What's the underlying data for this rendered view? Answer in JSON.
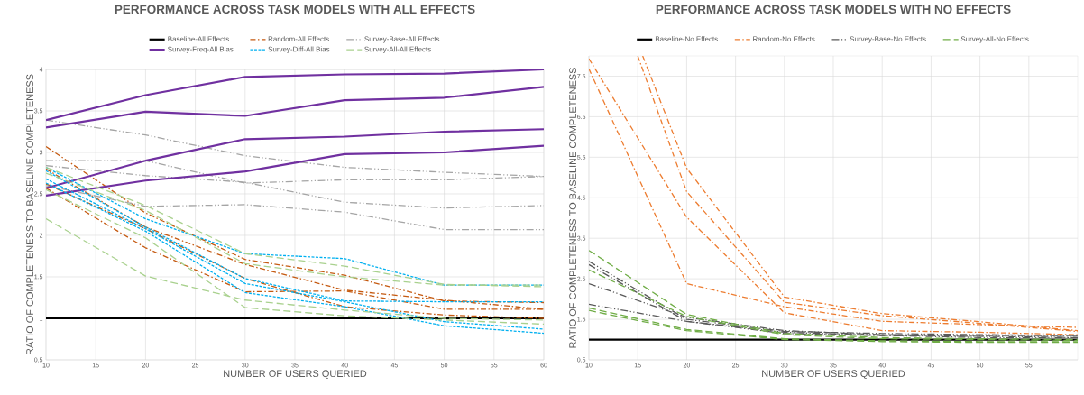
{
  "chart_data": [
    {
      "type": "line",
      "title": "PERFORMANCE ACROSS TASK MODELS WITH ALL EFFECTS",
      "xlabel": "NUMBER OF USERS QUERIED",
      "ylabel": "RATIO OF COMPLETENESS TO BASELINE COMPLETENESS",
      "x": [
        10,
        20,
        30,
        40,
        50,
        60
      ],
      "xlim": [
        10,
        60
      ],
      "xticks": [
        10,
        15,
        20,
        25,
        30,
        35,
        40,
        45,
        50,
        55,
        60
      ],
      "ylim": [
        0.5,
        4
      ],
      "yticks": [
        0.5,
        1,
        1.5,
        2,
        2.5,
        3,
        3.5,
        4
      ],
      "grid": true,
      "legend": "top",
      "series": [
        {
          "name": "Baseline-All Effects",
          "color": "#000000",
          "line_style": "solid",
          "values": [
            1,
            1,
            1,
            1,
            1,
            1
          ]
        },
        {
          "name": "Random-All Effects",
          "color": "#c55a11",
          "line_style": "dashdot",
          "values": [
            3.07,
            2.27,
            1.71,
            1.52,
            1.21,
            1.19
          ]
        },
        {
          "color": "#c55a11",
          "line_style": "dashdot",
          "values": [
            2.8,
            2.1,
            1.65,
            1.34,
            1.22,
            1.11
          ]
        },
        {
          "color": "#c55a11",
          "line_style": "dashdot",
          "values": [
            2.57,
            1.85,
            1.32,
            1.33,
            1.11,
            1.11
          ]
        },
        {
          "color": "#c55a11",
          "line_style": "dashdot",
          "values": [
            2.62,
            2.08,
            1.48,
            1.14,
            1.04,
            1.0
          ]
        },
        {
          "name": "Survey-Base-All Effects",
          "color": "#a5a5a5",
          "line_style": "dashdotdot",
          "values": [
            3.39,
            3.21,
            2.96,
            2.82,
            2.76,
            2.71
          ]
        },
        {
          "color": "#a5a5a5",
          "line_style": "dashdotdot",
          "values": [
            2.9,
            2.9,
            2.63,
            2.67,
            2.67,
            2.71
          ]
        },
        {
          "color": "#a5a5a5",
          "line_style": "dashdotdot",
          "values": [
            2.84,
            2.72,
            2.64,
            2.4,
            2.33,
            2.36
          ]
        },
        {
          "color": "#a5a5a5",
          "line_style": "dashdotdot",
          "values": [
            2.6,
            2.35,
            2.37,
            2.28,
            2.07,
            2.07
          ]
        },
        {
          "name": "Survey-Freq-All Bias",
          "color": "#7030a0",
          "line_style": "solid",
          "values": [
            3.39,
            3.69,
            3.91,
            3.94,
            3.95,
            4.0
          ]
        },
        {
          "color": "#7030a0",
          "line_style": "solid",
          "values": [
            3.3,
            3.49,
            3.44,
            3.63,
            3.66,
            3.79
          ]
        },
        {
          "color": "#7030a0",
          "line_style": "solid",
          "values": [
            2.57,
            2.9,
            3.16,
            3.19,
            3.25,
            3.28
          ]
        },
        {
          "color": "#7030a0",
          "line_style": "solid",
          "values": [
            2.48,
            2.66,
            2.77,
            2.98,
            3.0,
            3.08
          ]
        },
        {
          "name": "Survey-Diff-All Bias",
          "color": "#00b0f0",
          "line_style": "dashed",
          "values": [
            2.82,
            2.2,
            1.78,
            1.72,
            1.4,
            1.4
          ]
        },
        {
          "color": "#00b0f0",
          "line_style": "dashed",
          "values": [
            2.78,
            2.1,
            1.48,
            1.21,
            1.2,
            1.2
          ]
        },
        {
          "color": "#00b0f0",
          "line_style": "dashed",
          "values": [
            2.68,
            2.08,
            1.42,
            1.2,
            0.96,
            0.87
          ]
        },
        {
          "color": "#00b0f0",
          "line_style": "dashed",
          "values": [
            2.63,
            2.05,
            1.31,
            1.14,
            0.91,
            0.82
          ]
        },
        {
          "name": "Survey-All-All Effects",
          "color": "#a9d18e",
          "line_style": "longdash",
          "values": [
            2.82,
            2.36,
            1.78,
            1.63,
            1.41,
            1.38
          ]
        },
        {
          "color": "#a9d18e",
          "line_style": "longdash",
          "values": [
            2.75,
            2.3,
            1.66,
            1.5,
            1.4,
            1.4
          ]
        },
        {
          "color": "#a9d18e",
          "line_style": "longdash",
          "values": [
            2.55,
            1.97,
            1.13,
            1.03,
            0.98,
            0.93
          ]
        },
        {
          "color": "#a9d18e",
          "line_style": "longdash",
          "values": [
            2.2,
            1.51,
            1.22,
            1.1,
            1.0,
            0.98
          ]
        }
      ]
    },
    {
      "type": "line",
      "title": "PERFORMANCE ACROSS TASK MODELS WITH NO EFFECTS",
      "xlabel": "NUMBER OF USERS QUERIED",
      "ylabel": "RATIO OF COMPLETENESS TO BASELINE COMPLETENESS",
      "x": [
        10,
        20,
        30,
        40,
        50,
        60
      ],
      "xlim": [
        10,
        60
      ],
      "xticks": [
        10,
        15,
        20,
        25,
        30,
        35,
        40,
        45,
        50,
        55
      ],
      "ylim": [
        0.5,
        8
      ],
      "yticks": [
        0.5,
        1.5,
        2.5,
        3.5,
        4.5,
        5.5,
        6.5,
        7.5
      ],
      "grid": true,
      "legend": "top",
      "series": [
        {
          "name": "Baseline-No Effects",
          "color": "#000000",
          "line_style": "solid",
          "values": [
            1,
            1,
            1,
            1,
            1,
            1
          ]
        },
        {
          "name": "Random-No Effects",
          "color": "#ed7d31",
          "line_style": "dashdot",
          "x": [
            15.5,
            20,
            30,
            40,
            50,
            60
          ],
          "values": [
            8,
            5.23,
            2.05,
            1.64,
            1.44,
            1.22
          ]
        },
        {
          "color": "#ed7d31",
          "line_style": "dashdot",
          "x": [
            15,
            20,
            30,
            40,
            50,
            60
          ],
          "values": [
            8,
            4.65,
            1.92,
            1.59,
            1.4,
            1.2
          ]
        },
        {
          "color": "#ed7d31",
          "line_style": "dashdot",
          "values": [
            7.93,
            4.02,
            1.66,
            1.22,
            1.18,
            1.12
          ]
        },
        {
          "color": "#ed7d31",
          "line_style": "dashdot",
          "values": [
            7.68,
            2.38,
            1.81,
            1.45,
            1.37,
            1.3
          ]
        },
        {
          "name": "Survey-Base-No Effects",
          "color": "#595959",
          "line_style": "dashdotdot",
          "values": [
            2.93,
            1.5,
            1.2,
            1.15,
            1.12,
            1.1
          ]
        },
        {
          "color": "#595959",
          "line_style": "dashdotdot",
          "values": [
            2.85,
            1.45,
            1.15,
            1.1,
            1.08,
            1.05
          ]
        },
        {
          "color": "#595959",
          "line_style": "dashdotdot",
          "values": [
            2.38,
            1.55,
            1.22,
            1.12,
            1.1,
            1.1
          ]
        },
        {
          "color": "#595959",
          "line_style": "dashdotdot",
          "values": [
            1.87,
            1.45,
            1.18,
            1.1,
            1.05,
            1.05
          ]
        },
        {
          "name": "Survey-All-No Effects",
          "color": "#70ad47",
          "line_style": "longdash",
          "values": [
            3.2,
            1.62,
            1.15,
            1.05,
            1.02,
            1.0
          ]
        },
        {
          "color": "#70ad47",
          "line_style": "longdash",
          "values": [
            2.72,
            1.57,
            1.12,
            1.02,
            1.0,
            0.98
          ]
        },
        {
          "color": "#70ad47",
          "line_style": "longdash",
          "values": [
            1.78,
            1.25,
            1.02,
            0.97,
            0.95,
            0.95
          ]
        },
        {
          "color": "#70ad47",
          "line_style": "longdash",
          "values": [
            1.72,
            1.22,
            1.0,
            0.95,
            0.93,
            0.93
          ]
        }
      ]
    }
  ]
}
